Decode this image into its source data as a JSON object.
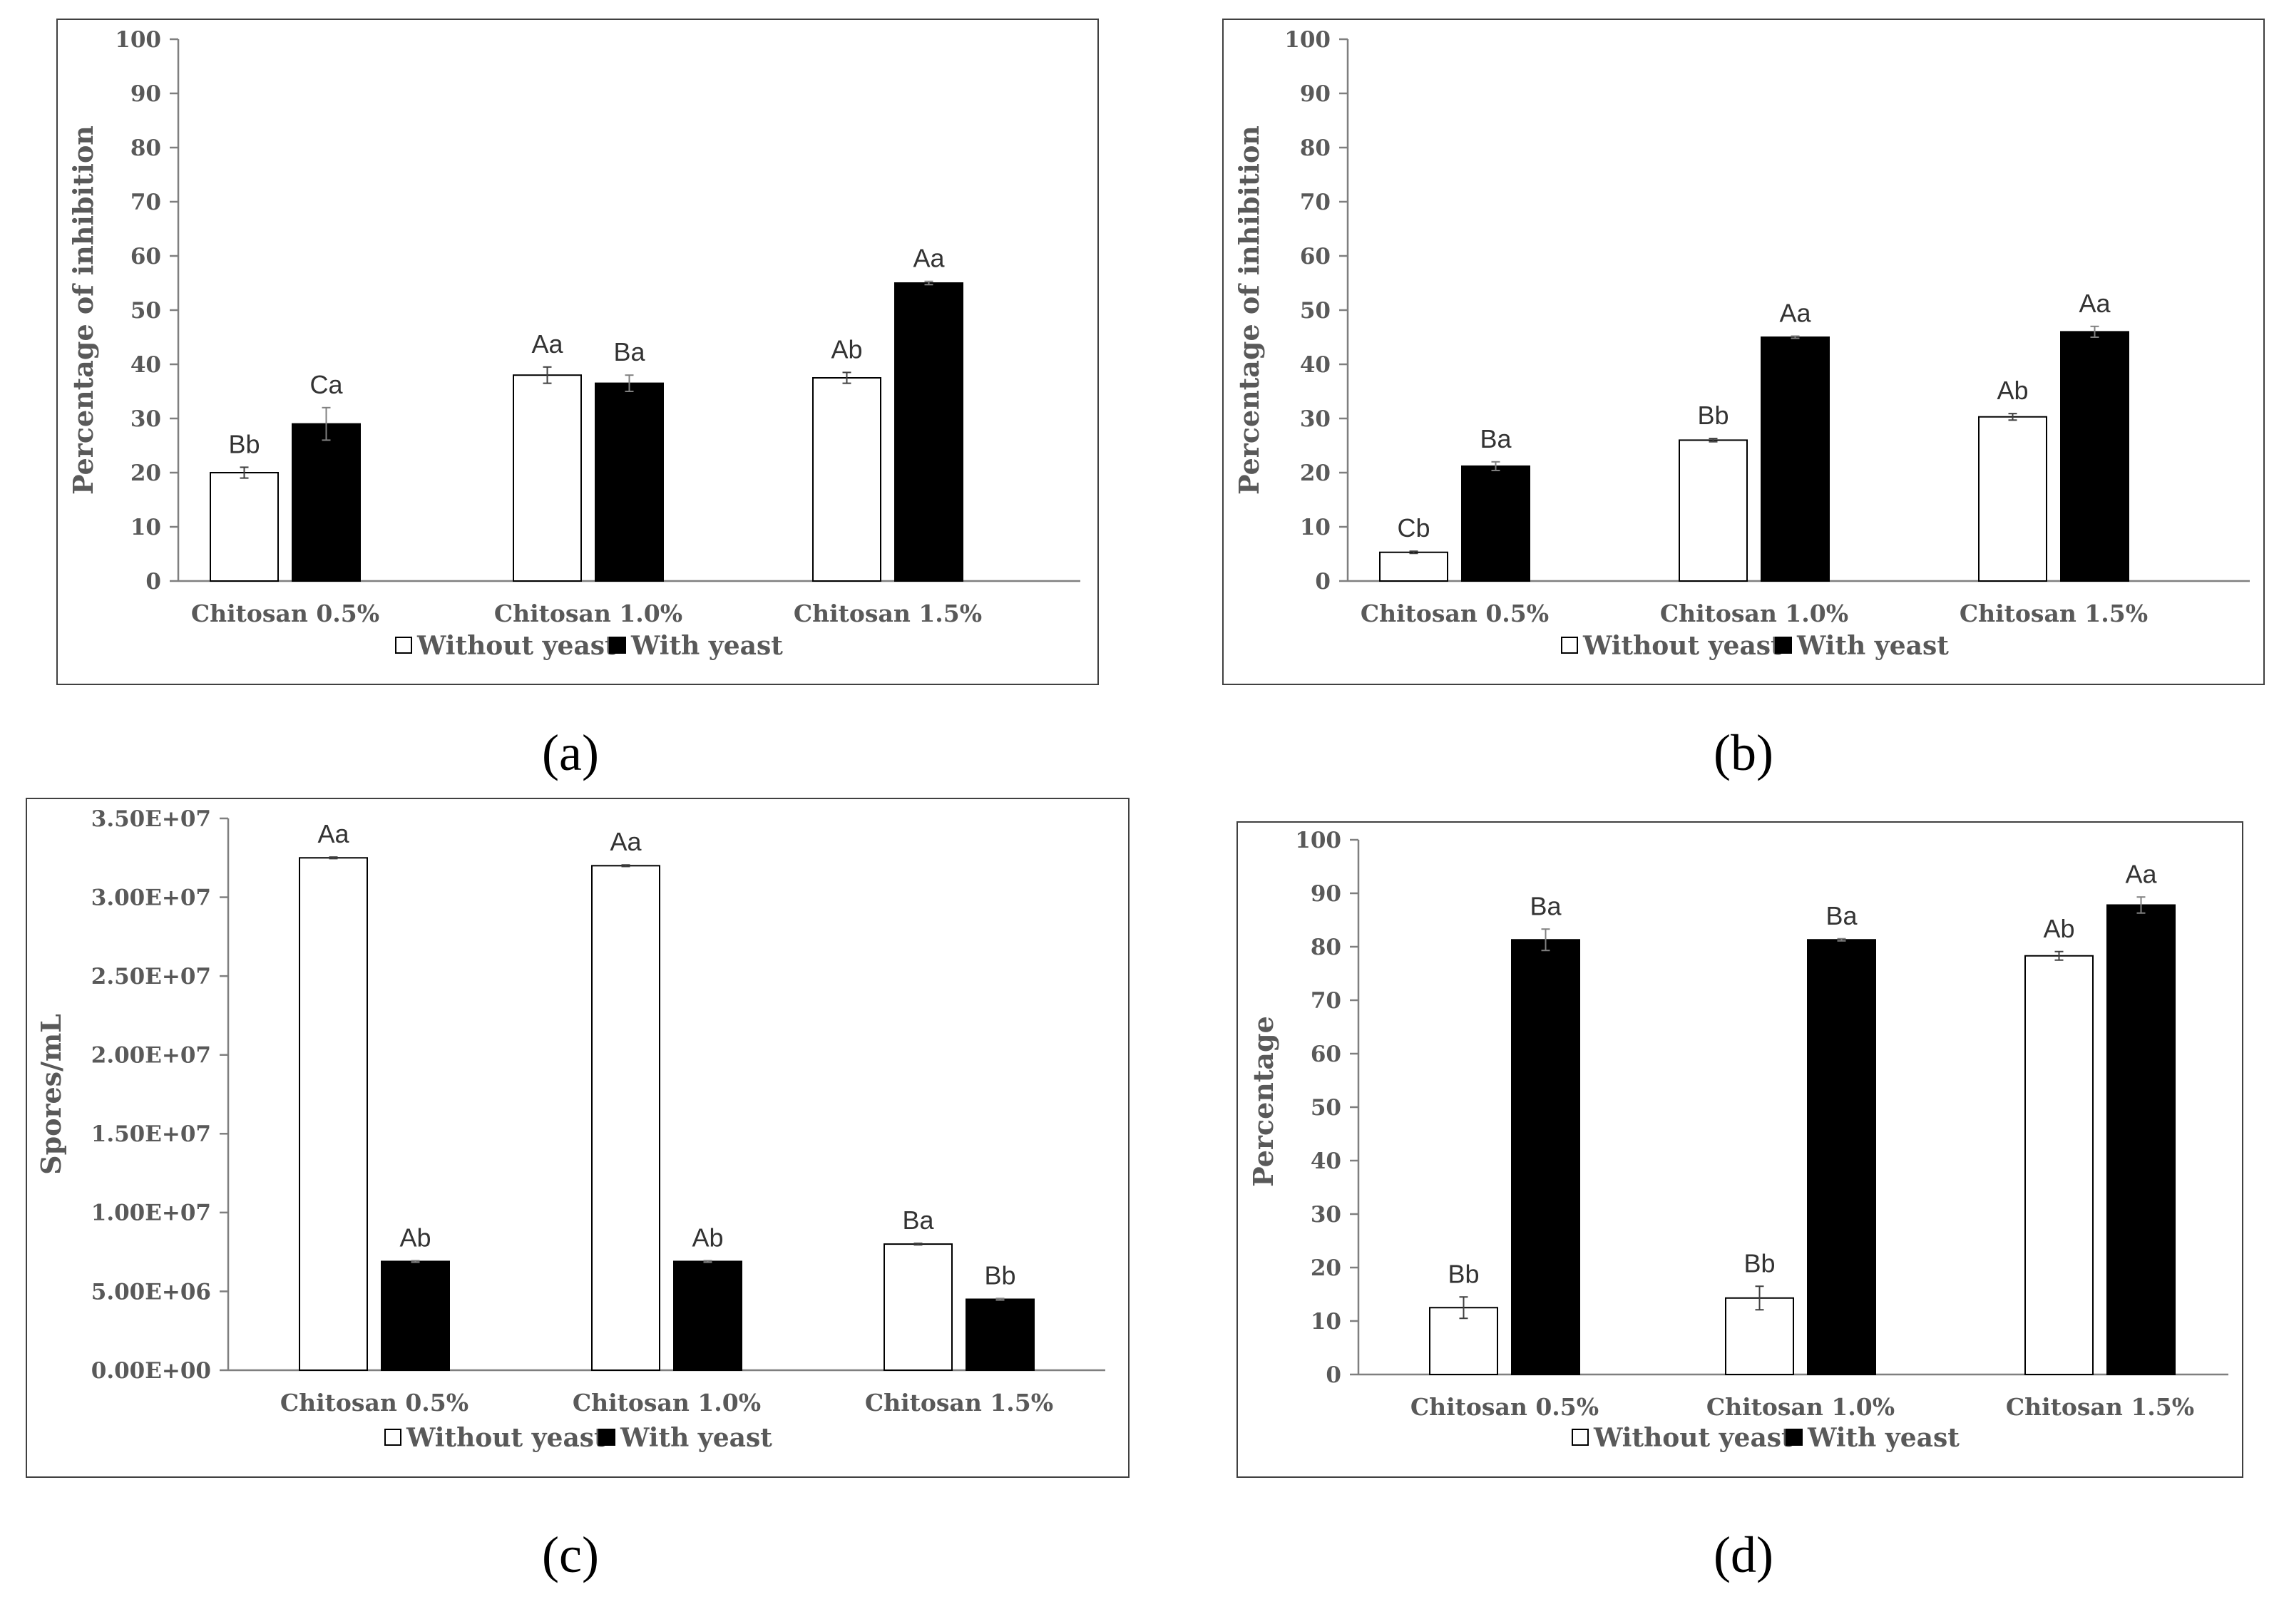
{
  "figure": {
    "colors": {
      "without_yeast": "#ffffff",
      "with_yeast": "#000000",
      "axis": "#7f7f7f",
      "frame": "#404040",
      "text": "#595959"
    }
  },
  "chart_data": [
    {
      "id": "a",
      "panel_label": "(a)",
      "type": "bar",
      "title": "",
      "xlabel": "",
      "ylabel": "Percentage of inhibition",
      "categories": [
        "Chitosan 0.5%",
        "Chitosan 1.0%",
        "Chitosan 1.5%"
      ],
      "ylim": [
        0,
        100
      ],
      "yticks": [
        0,
        10,
        20,
        30,
        40,
        50,
        60,
        70,
        80,
        90,
        100
      ],
      "ytick_labels": [
        "0",
        "10",
        "20",
        "30",
        "40",
        "50",
        "60",
        "70",
        "80",
        "90",
        "100"
      ],
      "grid": false,
      "legend_position": "bottom",
      "series": [
        {
          "name": "Without yeast",
          "values": [
            20,
            38,
            37.5
          ],
          "errors": [
            1,
            1.5,
            1
          ],
          "labels": [
            "Bb",
            "Aa",
            "Ab"
          ]
        },
        {
          "name": "With yeast",
          "values": [
            29,
            36.5,
            55
          ],
          "errors": [
            3,
            1.5,
            0.3
          ],
          "labels": [
            "Ca",
            "Ba",
            "Aa"
          ]
        }
      ]
    },
    {
      "id": "b",
      "panel_label": "(b)",
      "type": "bar",
      "title": "",
      "xlabel": "",
      "ylabel": "Percentage of inhibition",
      "categories": [
        "Chitosan 0.5%",
        "Chitosan 1.0%",
        "Chitosan 1.5%"
      ],
      "ylim": [
        0,
        100
      ],
      "yticks": [
        0,
        10,
        20,
        30,
        40,
        50,
        60,
        70,
        80,
        90,
        100
      ],
      "ytick_labels": [
        "0",
        "10",
        "20",
        "30",
        "40",
        "50",
        "60",
        "70",
        "80",
        "90",
        "100"
      ],
      "grid": false,
      "legend_position": "bottom",
      "series": [
        {
          "name": "Without yeast",
          "values": [
            5.3,
            26,
            30.3
          ],
          "errors": [
            0.2,
            0.3,
            0.6
          ],
          "labels": [
            "Cb",
            "Bb",
            "Ab"
          ]
        },
        {
          "name": "With yeast",
          "values": [
            21.2,
            45,
            46
          ],
          "errors": [
            0.8,
            0.2,
            1
          ],
          "labels": [
            "Ba",
            "Aa",
            "Aa"
          ]
        }
      ]
    },
    {
      "id": "c",
      "panel_label": "(c)",
      "type": "bar",
      "title": "",
      "xlabel": "",
      "ylabel": "Spores/mL",
      "categories": [
        "Chitosan 0.5%",
        "Chitosan 1.0%",
        "Chitosan 1.5%"
      ],
      "ylim": [
        0,
        35000000
      ],
      "yticks": [
        0,
        5000000,
        10000000,
        15000000,
        20000000,
        25000000,
        30000000,
        35000000
      ],
      "ytick_labels": [
        "0.00E+00",
        "5.00E+06",
        "1.00E+07",
        "1.50E+07",
        "2.00E+07",
        "2.50E+07",
        "3.00E+07",
        "3.50E+07"
      ],
      "grid": false,
      "legend_position": "bottom",
      "series": [
        {
          "name": "Without yeast",
          "values": [
            32500000,
            32000000,
            8000000
          ],
          "errors": [
            50000,
            50000,
            50000
          ],
          "labels": [
            "Aa",
            "Aa",
            "Ba"
          ]
        },
        {
          "name": "With yeast",
          "values": [
            6900000,
            6900000,
            4500000
          ],
          "errors": [
            50000,
            50000,
            50000
          ],
          "labels": [
            "Ab",
            "Ab",
            "Bb"
          ]
        }
      ]
    },
    {
      "id": "d",
      "panel_label": "(d)",
      "type": "bar",
      "title": "",
      "xlabel": "",
      "ylabel": "Percentage",
      "categories": [
        "Chitosan 0.5%",
        "Chitosan 1.0%",
        "Chitosan 1.5%"
      ],
      "ylim": [
        0,
        100
      ],
      "yticks": [
        0,
        10,
        20,
        30,
        40,
        50,
        60,
        70,
        80,
        90,
        100
      ],
      "ytick_labels": [
        "0",
        "10",
        "20",
        "30",
        "40",
        "50",
        "60",
        "70",
        "80",
        "90",
        "100"
      ],
      "grid": false,
      "legend_position": "bottom",
      "series": [
        {
          "name": "Without yeast",
          "values": [
            12.5,
            14.3,
            78.3
          ],
          "errors": [
            2,
            2.2,
            0.8
          ],
          "labels": [
            "Bb",
            "Bb",
            "Ab"
          ]
        },
        {
          "name": "With yeast",
          "values": [
            81.3,
            81.3,
            87.8
          ],
          "errors": [
            2,
            0.2,
            1.5
          ],
          "labels": [
            "Ba",
            "Ba",
            "Aa"
          ]
        }
      ]
    }
  ]
}
